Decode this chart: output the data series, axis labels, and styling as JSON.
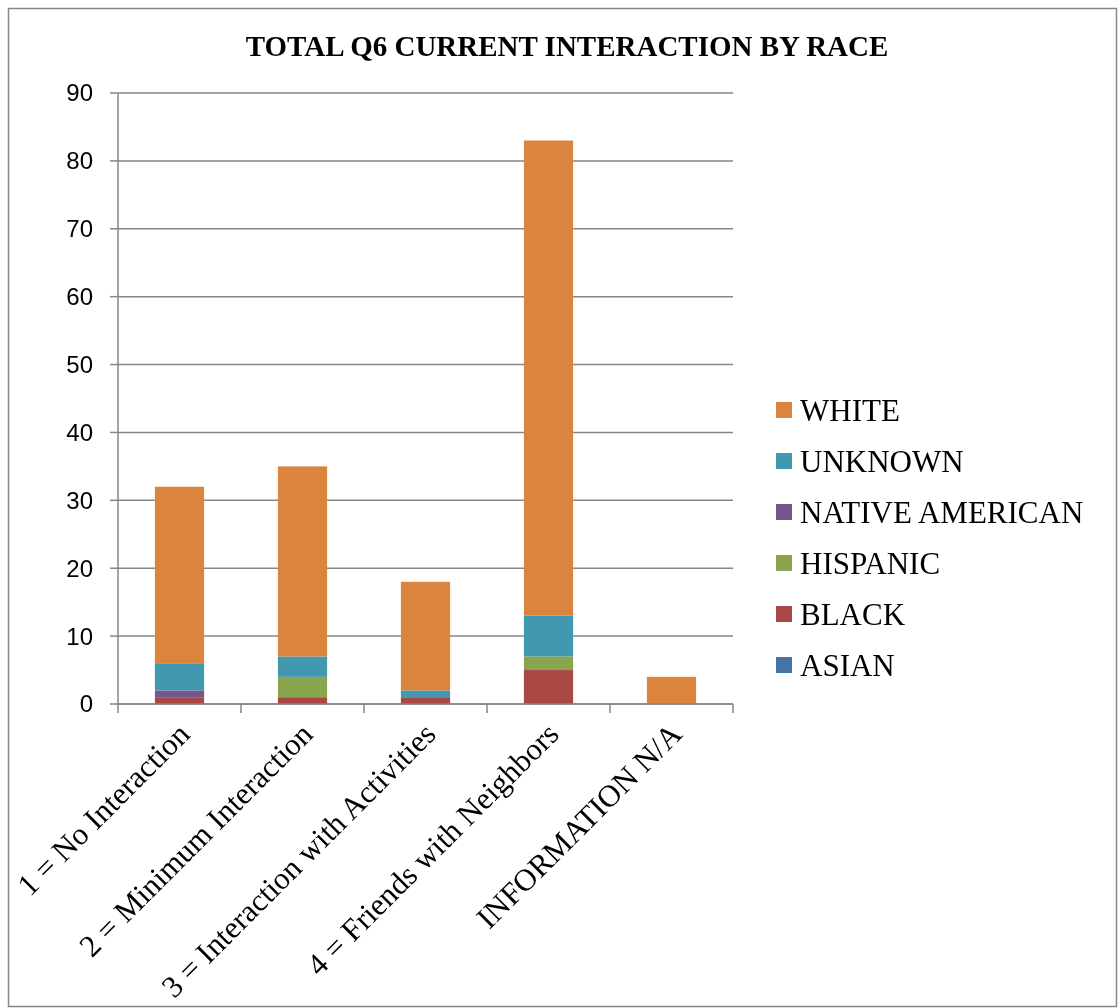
{
  "chart_data": {
    "type": "bar",
    "title": "TOTAL Q6 CURRENT INTERACTION BY RACE",
    "categories": [
      "1 = No Interaction",
      "2 = Minimum Interaction",
      "3 = Interaction with Activities",
      "4 = Friends with Neighbors",
      "INFORMATION N/A"
    ],
    "series": [
      {
        "name": "ASIAN",
        "color": "#4572a7",
        "values": [
          0,
          0,
          0,
          0,
          0
        ]
      },
      {
        "name": "BLACK",
        "color": "#aa4643",
        "values": [
          1,
          1,
          1,
          5,
          0
        ]
      },
      {
        "name": "HISPANIC",
        "color": "#89a54e",
        "values": [
          0,
          3,
          0,
          2,
          0
        ]
      },
      {
        "name": "NATIVE AMERICAN",
        "color": "#71588f",
        "values": [
          1,
          0,
          0,
          0,
          0
        ]
      },
      {
        "name": "UNKNOWN",
        "color": "#4198af",
        "values": [
          4,
          3,
          1,
          6,
          0
        ]
      },
      {
        "name": "WHITE",
        "color": "#db843d",
        "values": [
          26,
          28,
          16,
          70,
          4
        ]
      }
    ],
    "stacked": true,
    "ylim": [
      0,
      90
    ],
    "yticks": [
      0,
      10,
      20,
      30,
      40,
      50,
      60,
      70,
      80,
      90
    ],
    "grid": "y",
    "legend": "right"
  }
}
